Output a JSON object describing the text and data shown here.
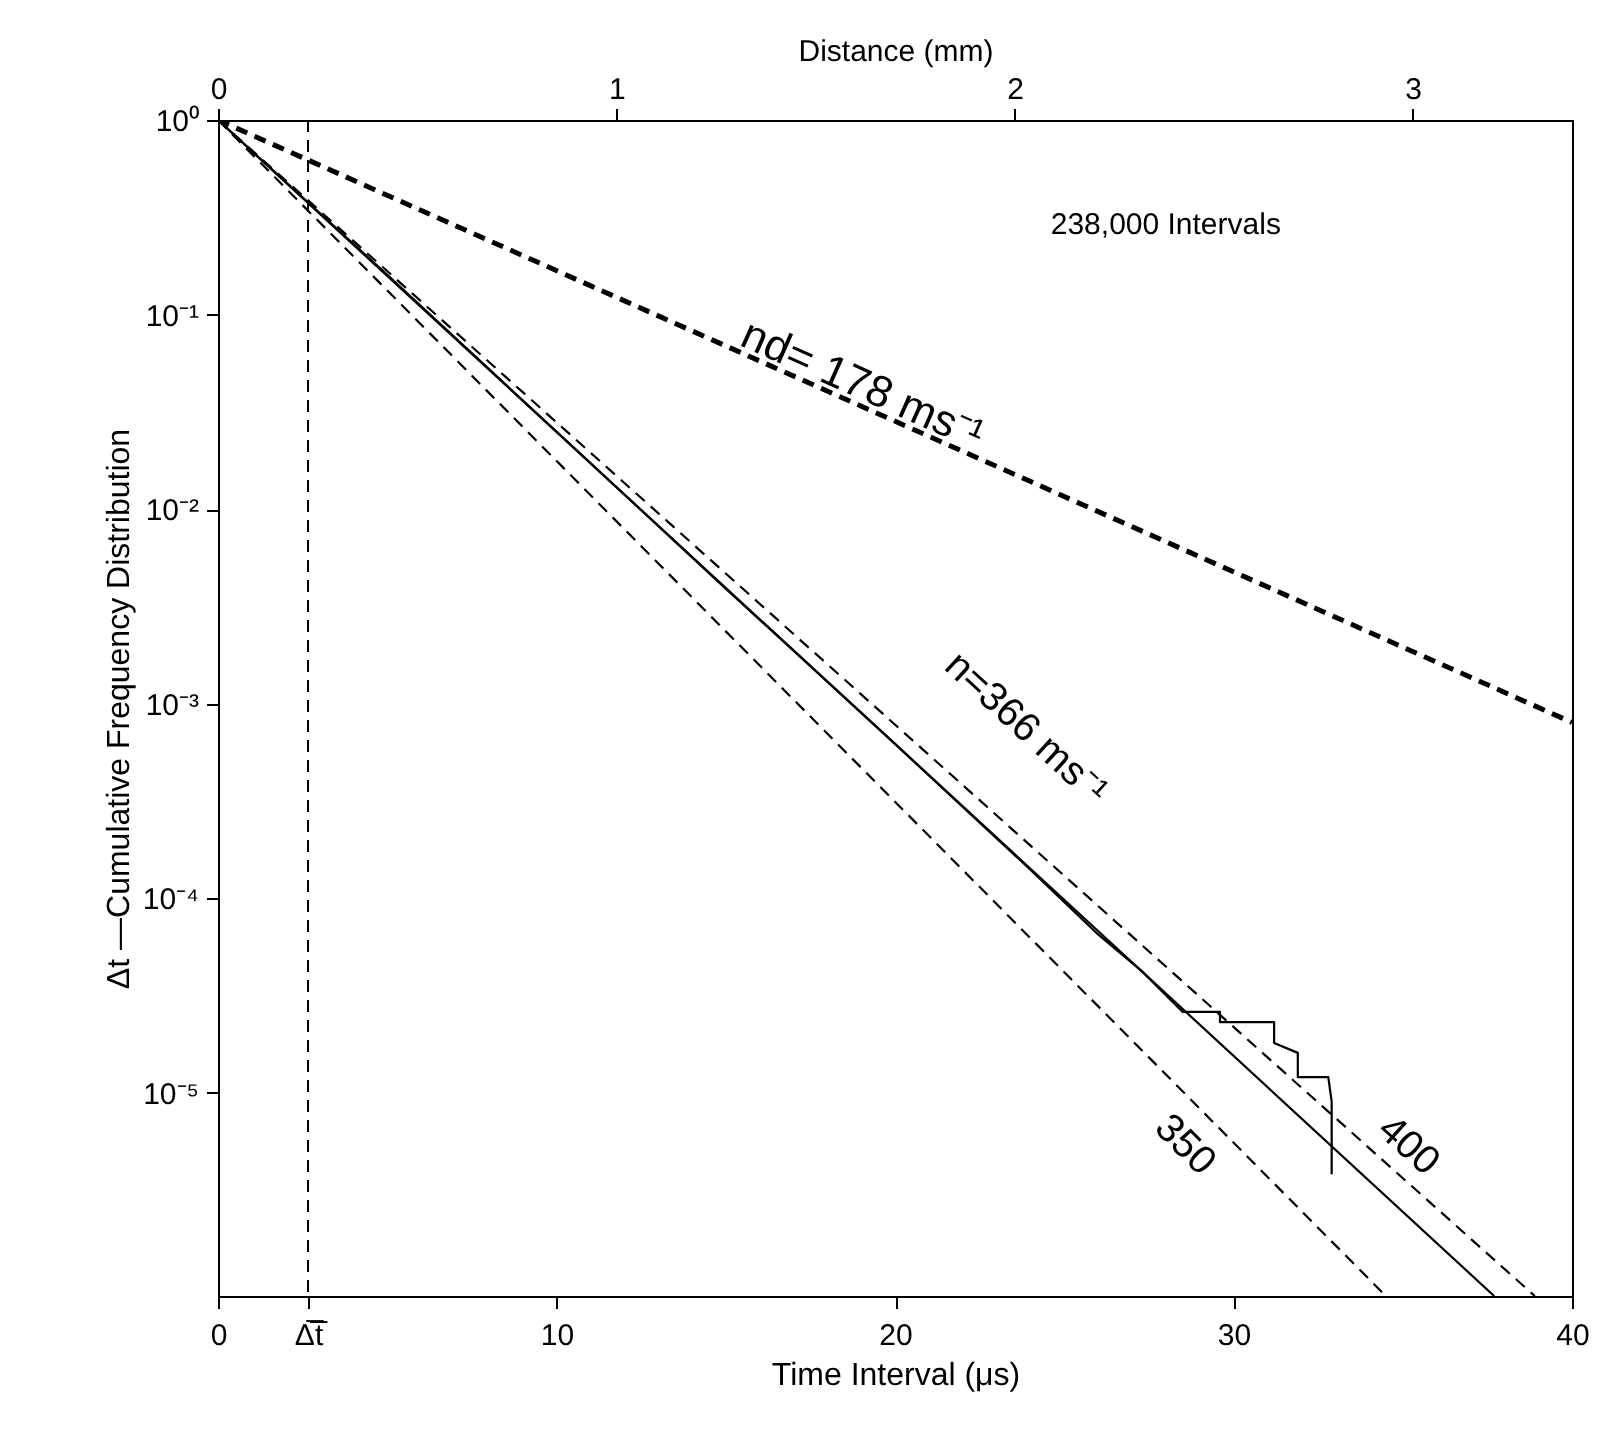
{
  "chart_data": {
    "type": "line",
    "xlabel": "Time Interval (μs)",
    "ylabel": "Δt —Cumulative Frequency Distribution",
    "x2label": "Distance (mm)",
    "xlim": [
      0,
      40
    ],
    "xticks": [
      0,
      {
        "value": 2.66,
        "label": "Δ̅t̅"
      },
      10,
      20,
      30,
      40
    ],
    "x2lim": [
      0,
      3.4
    ],
    "x2ticks": [
      0,
      1,
      2,
      3
    ],
    "ylim": [
      9e-07,
      1
    ],
    "yticks": [
      {
        "value": 1,
        "label": "10⁰"
      },
      {
        "value": 0.1,
        "label": "10⁻¹"
      },
      {
        "value": 0.01,
        "label": "10⁻²"
      },
      {
        "value": 0.001,
        "label": "10⁻³"
      },
      {
        "value": 0.0001,
        "label": "10⁻⁴"
      },
      {
        "value": 1e-05,
        "label": "10⁻⁵"
      }
    ],
    "log": "y",
    "grid": false,
    "marker": "none",
    "series": [
      {
        "name": "nd= 178 ms⁻¹",
        "color": "#000000",
        "line_style": "dashed",
        "x": [
          0,
          40
        ],
        "values": [
          1,
          0.0008
        ]
      },
      {
        "color": "#000000",
        "line_style": "solid",
        "x": [
          0,
          5,
          10,
          15,
          20,
          24,
          26,
          27.3,
          28.5,
          29.6,
          29.6,
          31.2,
          31.2,
          31.9,
          31.9,
          32.8,
          32.9,
          32.9
        ],
        "values": [
          1,
          0.16,
          0.025,
          0.0039,
          0.00062,
          0.00014,
          6.5e-05,
          4.2e-05,
          2.6e-05,
          2.6e-05,
          2.3e-05,
          2.3e-05,
          1.8e-05,
          1.6e-05,
          1.2e-05,
          1.2e-05,
          9e-06,
          3.8e-06
        ]
      },
      {
        "name": "n=366 ms⁻¹",
        "color": "#000000",
        "line_style": "solid",
        "x": [
          0,
          37.7
        ],
        "values": [
          1,
          9e-07
        ]
      },
      {
        "name": "350",
        "color": "#000000",
        "line_style": "dashed",
        "x": [
          0,
          34.5
        ],
        "values": [
          1,
          9e-07
        ]
      },
      {
        "name": "400",
        "color": "#000000",
        "line_style": "dashed",
        "x": [
          0,
          38.9
        ],
        "values": [
          1,
          9e-07
        ]
      }
    ],
    "ref_lines": [
      {
        "axis": "x",
        "value": 2.66,
        "line_style": "dashed",
        "color": "#000000"
      }
    ],
    "annotations": [
      "238,000 Intervals"
    ]
  }
}
